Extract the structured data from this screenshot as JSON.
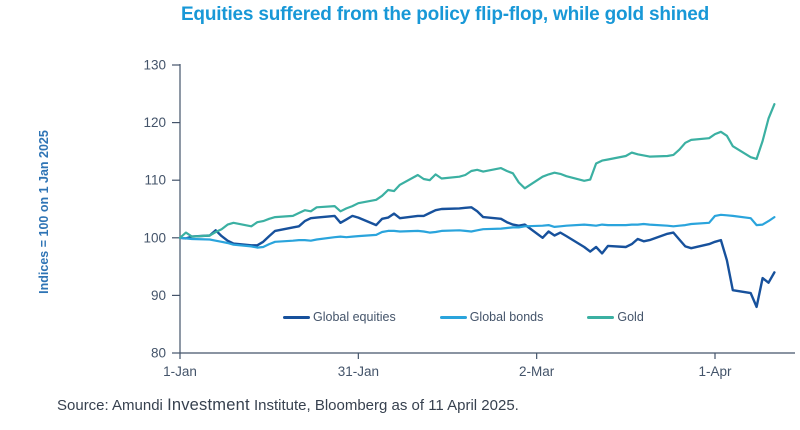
{
  "title": "Equities suffered from the policy flip-flop, while gold shined",
  "y_axis_label": "Indices = 100 on 1 Jan 2025",
  "source": {
    "prefix": "Source: Amundi ",
    "brand": "Investment",
    "suffix": " Institute, Bloomberg as of 11 April 2025."
  },
  "colors": {
    "title": "#1898D7",
    "axis": "#44546A",
    "tick_label": "#44546A",
    "y_axis_label": "#2E74B5",
    "legend_label": "#44546A",
    "source_text": "#37414F",
    "background": "#FFFFFF"
  },
  "chart_data": {
    "type": "line",
    "title": "Equities suffered from the policy flip-flop, while gold shined",
    "xlabel": "",
    "ylabel": "Indices = 100 on 1 Jan 2025",
    "ylim": [
      80,
      130
    ],
    "xlim_days": [
      0,
      103
    ],
    "grid": false,
    "legend_position": "inside-bottom",
    "x_unit": "days since 1 Jan 2025",
    "x_ticks": [
      {
        "day": 0,
        "label": "1-Jan"
      },
      {
        "day": 30,
        "label": "31-Jan"
      },
      {
        "day": 60,
        "label": "2-Mar"
      },
      {
        "day": 90,
        "label": "1-Apr"
      }
    ],
    "y_ticks": [
      80,
      90,
      100,
      110,
      120,
      130
    ],
    "days": [
      0,
      1,
      2,
      5,
      6,
      7,
      8,
      9,
      12,
      13,
      14,
      15,
      16,
      19,
      20,
      21,
      22,
      23,
      26,
      27,
      28,
      29,
      30,
      33,
      34,
      35,
      36,
      37,
      40,
      41,
      42,
      43,
      44,
      47,
      48,
      49,
      50,
      51,
      54,
      55,
      56,
      57,
      58,
      61,
      62,
      63,
      64,
      65,
      68,
      69,
      70,
      71,
      72,
      75,
      76,
      77,
      78,
      79,
      82,
      83,
      84,
      85,
      86,
      89,
      90,
      91,
      92,
      93,
      96,
      97,
      98,
      99,
      100
    ],
    "series": [
      {
        "name": "Global equities",
        "color": "#17519C",
        "values": [
          100,
          99.9,
          100.2,
          100.4,
          101.3,
          100.3,
          99.5,
          99,
          98.7,
          98.7,
          99.3,
          100.3,
          101.2,
          101.8,
          102,
          102.9,
          103.4,
          103.5,
          103.8,
          102.6,
          103.2,
          103.8,
          103.5,
          102.2,
          103.3,
          103.5,
          104.2,
          103.4,
          103.8,
          103.8,
          104.3,
          104.8,
          105,
          105.1,
          105.2,
          105.3,
          104.6,
          103.6,
          103.3,
          102.7,
          102.3,
          102.1,
          102.3,
          100,
          101.1,
          100.4,
          100.9,
          100.3,
          98.4,
          97.6,
          98.4,
          97.3,
          98.6,
          98.4,
          98.9,
          99.8,
          99.4,
          99.6,
          100.7,
          100.9,
          99.7,
          98.5,
          98.2,
          98.9,
          99.3,
          99.6,
          96.1,
          90.9,
          90.4,
          88,
          93,
          92.2,
          94
        ]
      },
      {
        "name": "Global bonds",
        "color": "#2AA4DC",
        "values": [
          100,
          99.9,
          99.8,
          99.7,
          99.5,
          99.3,
          99.1,
          98.8,
          98.5,
          98.3,
          98.4,
          98.9,
          99.3,
          99.5,
          99.6,
          99.6,
          99.5,
          99.7,
          100.1,
          100.2,
          100.1,
          100.2,
          100.3,
          100.5,
          101,
          101.2,
          101.2,
          101.1,
          101.2,
          101.1,
          100.9,
          101,
          101.2,
          101.3,
          101.2,
          101.1,
          101.3,
          101.5,
          101.6,
          101.7,
          101.8,
          101.8,
          102,
          102.1,
          102.2,
          101.9,
          102,
          102.1,
          102.3,
          102.2,
          102.1,
          102.3,
          102.2,
          102.2,
          102.3,
          102.3,
          102.4,
          102.3,
          102.1,
          102,
          102.1,
          102.2,
          102.4,
          102.6,
          103.8,
          104,
          103.9,
          103.8,
          103.4,
          102.2,
          102.3,
          102.9,
          103.6
        ]
      },
      {
        "name": "Gold",
        "color": "#3BB0A2",
        "values": [
          100,
          100.9,
          100.2,
          100.4,
          101,
          101.5,
          102.3,
          102.6,
          102,
          102.7,
          102.9,
          103.3,
          103.6,
          103.8,
          104.3,
          104.8,
          104.6,
          105.3,
          105.5,
          104.6,
          105.1,
          105.5,
          106,
          106.6,
          107.3,
          108.3,
          108.1,
          109.2,
          110.9,
          110.2,
          110,
          111,
          110.3,
          110.6,
          110.9,
          111.6,
          111.8,
          111.5,
          112.1,
          111.6,
          111.2,
          109.6,
          108.6,
          110.6,
          111,
          111.3,
          111.1,
          110.7,
          109.9,
          110.1,
          112.9,
          113.4,
          113.6,
          114.2,
          114.8,
          114.5,
          114.3,
          114.1,
          114.2,
          114.4,
          115.3,
          116.5,
          117,
          117.3,
          118,
          118.4,
          117.7,
          115.9,
          114,
          113.7,
          116.8,
          120.7,
          123.2
        ]
      }
    ]
  }
}
